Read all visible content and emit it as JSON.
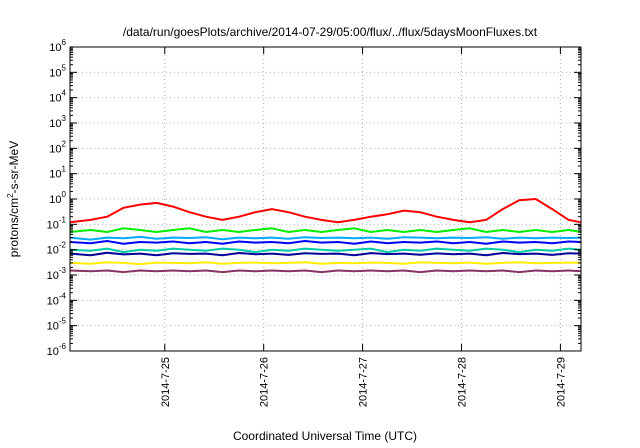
{
  "chart_data": {
    "type": "line",
    "title": "/data/run/goesPlots/archive/2014-07-29/05:00/flux/../flux/5daysMoonFluxes.txt",
    "xlabel": "Coordinated Universal Time (UTC)",
    "ylabel_parts": {
      "base": "protons/cm",
      "sup": "2",
      "rest": "-s-sr-MeV"
    },
    "yscale": "log",
    "ylim": [
      1e-06,
      1000000.0
    ],
    "xlim": [
      "2014-07-24T01:00",
      "2014-07-29T05:00"
    ],
    "grid": true,
    "legend": "none",
    "x_ticks": [
      "2014-7-25",
      "2014-7-26",
      "2014-7-27",
      "2014-7-28",
      "2014-7-29"
    ],
    "y_ticks": [
      {
        "base": "10",
        "exp": "-6"
      },
      {
        "base": "10",
        "exp": "-5"
      },
      {
        "base": "10",
        "exp": "-4"
      },
      {
        "base": "10",
        "exp": "-3"
      },
      {
        "base": "10",
        "exp": "-2"
      },
      {
        "base": "10",
        "exp": "-1"
      },
      {
        "base": "10",
        "exp": "0"
      },
      {
        "base": "10",
        "exp": "1"
      },
      {
        "base": "10",
        "exp": "2"
      },
      {
        "base": "10",
        "exp": "3"
      },
      {
        "base": "10",
        "exp": "4"
      },
      {
        "base": "10",
        "exp": "5"
      },
      {
        "base": "10",
        "exp": "6"
      }
    ],
    "x": [
      "2014-07-24T01:00",
      "2014-07-24T06:00",
      "2014-07-24T10:00",
      "2014-07-24T14:00",
      "2014-07-24T18:00",
      "2014-07-24T22:00",
      "2014-07-25T02:00",
      "2014-07-25T06:00",
      "2014-07-25T10:00",
      "2014-07-25T14:00",
      "2014-07-25T18:00",
      "2014-07-25T22:00",
      "2014-07-26T02:00",
      "2014-07-26T06:00",
      "2014-07-26T10:00",
      "2014-07-26T14:00",
      "2014-07-26T18:00",
      "2014-07-26T22:00",
      "2014-07-27T02:00",
      "2014-07-27T06:00",
      "2014-07-27T10:00",
      "2014-07-27T14:00",
      "2014-07-27T18:00",
      "2014-07-27T22:00",
      "2014-07-28T02:00",
      "2014-07-28T06:00",
      "2014-07-28T10:00",
      "2014-07-28T14:00",
      "2014-07-28T18:00",
      "2014-07-28T22:00",
      "2014-07-29T02:00",
      "2014-07-29T05:00"
    ],
    "series": [
      {
        "color": "#ff0000",
        "values": [
          0.12,
          0.15,
          0.2,
          0.45,
          0.6,
          0.7,
          0.5,
          0.3,
          0.2,
          0.15,
          0.2,
          0.3,
          0.4,
          0.3,
          0.2,
          0.15,
          0.12,
          0.15,
          0.2,
          0.25,
          0.35,
          0.3,
          0.2,
          0.15,
          0.12,
          0.15,
          0.4,
          0.9,
          1.0,
          0.4,
          0.15,
          0.12
        ]
      },
      {
        "color": "#00ee00",
        "values": [
          0.05,
          0.06,
          0.05,
          0.07,
          0.06,
          0.05,
          0.06,
          0.07,
          0.05,
          0.06,
          0.05,
          0.06,
          0.07,
          0.05,
          0.06,
          0.05,
          0.06,
          0.07,
          0.05,
          0.06,
          0.05,
          0.06,
          0.05,
          0.06,
          0.07,
          0.05,
          0.06,
          0.05,
          0.06,
          0.05,
          0.06,
          0.05
        ]
      },
      {
        "color": "#00aaff",
        "values": [
          0.03,
          0.025,
          0.03,
          0.028,
          0.032,
          0.027,
          0.03,
          0.029,
          0.031,
          0.026,
          0.03,
          0.028,
          0.03,
          0.027,
          0.031,
          0.029,
          0.03,
          0.028,
          0.03,
          0.027,
          0.031,
          0.03,
          0.028,
          0.03,
          0.029,
          0.031,
          0.027,
          0.03,
          0.028,
          0.03,
          0.029,
          0.03
        ]
      },
      {
        "color": "#0000ff",
        "values": [
          0.02,
          0.018,
          0.022,
          0.017,
          0.02,
          0.019,
          0.021,
          0.018,
          0.02,
          0.017,
          0.021,
          0.019,
          0.02,
          0.018,
          0.022,
          0.019,
          0.02,
          0.017,
          0.021,
          0.018,
          0.02,
          0.019,
          0.021,
          0.018,
          0.02,
          0.017,
          0.021,
          0.019,
          0.02,
          0.018,
          0.021,
          0.02
        ]
      },
      {
        "color": "#00ccaa",
        "values": [
          0.01,
          0.009,
          0.011,
          0.008,
          0.01,
          0.009,
          0.011,
          0.01,
          0.009,
          0.011,
          0.01,
          0.008,
          0.01,
          0.009,
          0.011,
          0.01,
          0.009,
          0.01,
          0.011,
          0.008,
          0.01,
          0.009,
          0.011,
          0.01,
          0.009,
          0.011,
          0.01,
          0.008,
          0.01,
          0.009,
          0.011,
          0.01
        ]
      },
      {
        "color": "#000099",
        "values": [
          0.007,
          0.006,
          0.0075,
          0.0065,
          0.007,
          0.006,
          0.0072,
          0.0068,
          0.007,
          0.006,
          0.0074,
          0.0066,
          0.007,
          0.0062,
          0.0072,
          0.0068,
          0.007,
          0.006,
          0.0073,
          0.0067,
          0.007,
          0.0063,
          0.0071,
          0.0066,
          0.007,
          0.006,
          0.0074,
          0.0067,
          0.007,
          0.0062,
          0.0072,
          0.007
        ]
      },
      {
        "color": "#ffee00",
        "values": [
          0.003,
          0.0028,
          0.0032,
          0.003,
          0.0027,
          0.0031,
          0.003,
          0.0029,
          0.0032,
          0.0028,
          0.003,
          0.0031,
          0.0029,
          0.003,
          0.0032,
          0.0028,
          0.003,
          0.0029,
          0.0031,
          0.003,
          0.0028,
          0.0032,
          0.003,
          0.0029,
          0.0031,
          0.0028,
          0.003,
          0.0032,
          0.0029,
          0.003,
          0.0031,
          0.003
        ]
      },
      {
        "color": "#883366",
        "values": [
          0.0015,
          0.0014,
          0.0015,
          0.0013,
          0.0015,
          0.0014,
          0.0015,
          0.0014,
          0.0015,
          0.0013,
          0.0015,
          0.0014,
          0.0015,
          0.0014,
          0.0015,
          0.0013,
          0.0015,
          0.0014,
          0.0015,
          0.0014,
          0.0015,
          0.0013,
          0.0015,
          0.0014,
          0.0015,
          0.0014,
          0.0015,
          0.0013,
          0.0015,
          0.0014,
          0.0015,
          0.0014
        ]
      }
    ]
  }
}
